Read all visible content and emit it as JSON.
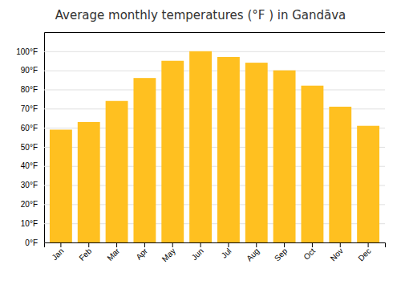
{
  "chart_data": {
    "type": "bar",
    "title": "Average monthly temperatures (°F ) in Gandāva",
    "categories": [
      "Jan",
      "Feb",
      "Mar",
      "Apr",
      "May",
      "Jun",
      "Jul",
      "Aug",
      "Sep",
      "Oct",
      "Nov",
      "Dec"
    ],
    "values": [
      59,
      63,
      74,
      86,
      95,
      100,
      97,
      94,
      90,
      82,
      71,
      61
    ],
    "color": "#FFC020",
    "ylim": [
      0,
      110
    ],
    "yticks": [
      {
        "value": 0,
        "label": "0°F"
      },
      {
        "value": 10,
        "label": "10°F"
      },
      {
        "value": 20,
        "label": "20°F"
      },
      {
        "value": 30,
        "label": "30°F"
      },
      {
        "value": 40,
        "label": "40°F"
      },
      {
        "value": 50,
        "label": "50°F"
      },
      {
        "value": 60,
        "label": "60°F"
      },
      {
        "value": 70,
        "label": "70°F"
      },
      {
        "value": 80,
        "label": "80°F"
      },
      {
        "value": 90,
        "label": "90°F"
      },
      {
        "value": 100,
        "label": "100°F"
      }
    ],
    "grid": true
  }
}
